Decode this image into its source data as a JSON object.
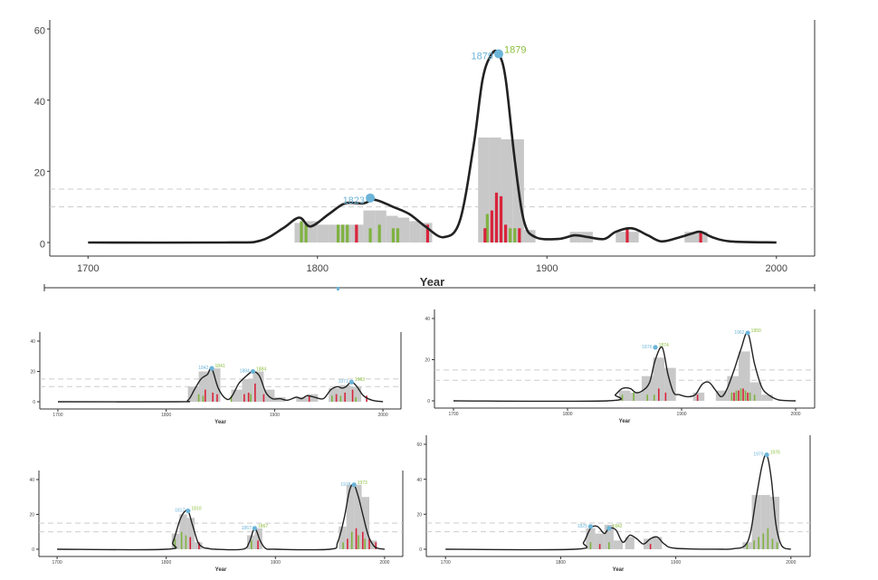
{
  "colors": {
    "curve": "#222222",
    "hist": "#c8c8c8",
    "green": "#7fb241",
    "red": "#d9243b",
    "peak_blue": "#6cb4d8",
    "peak_green": "#8dbf3f",
    "threshold": "#cccccc",
    "axis": "#333333"
  },
  "chart_data": [
    {
      "type": "area",
      "xlabel": "Year",
      "xlim": [
        1700,
        2000
      ],
      "ylim": [
        0,
        60
      ],
      "xticks": [
        "1700",
        "1800",
        "1900",
        "2000"
      ],
      "yticks": [
        "0",
        "20",
        "40",
        "60"
      ],
      "thresholds": [
        10,
        15
      ],
      "grid": false,
      "curve": {
        "x": [
          1700,
          1760,
          1775,
          1785,
          1792,
          1797,
          1805,
          1812,
          1820,
          1825,
          1833,
          1840,
          1847,
          1855,
          1862,
          1868,
          1872,
          1876,
          1879,
          1882,
          1886,
          1890,
          1895,
          1905,
          1912,
          1918,
          1925,
          1930,
          1937,
          1944,
          1950,
          1958,
          1963,
          1967,
          1972,
          1980,
          2000
        ],
        "y": [
          0,
          0,
          0.5,
          4,
          7,
          4.5,
          8,
          11,
          11,
          12,
          10,
          8,
          4.5,
          1.5,
          6,
          27,
          46,
          53,
          53,
          46,
          23,
          6,
          1.5,
          1,
          2,
          1.5,
          1,
          3,
          4,
          2,
          0.3,
          1.5,
          2.5,
          3,
          1.5,
          0.3,
          0
        ]
      },
      "histogram": [
        {
          "x0": 1790,
          "x1": 1795,
          "y": 5.5
        },
        {
          "x0": 1795,
          "x1": 1800,
          "y": 6
        },
        {
          "x0": 1800,
          "x1": 1805,
          "y": 5
        },
        {
          "x0": 1805,
          "x1": 1810,
          "y": 5
        },
        {
          "x0": 1810,
          "x1": 1815,
          "y": 5
        },
        {
          "x0": 1815,
          "x1": 1820,
          "y": 5
        },
        {
          "x0": 1820,
          "x1": 1825,
          "y": 9
        },
        {
          "x0": 1825,
          "x1": 1830,
          "y": 9
        },
        {
          "x0": 1830,
          "x1": 1835,
          "y": 7.5
        },
        {
          "x0": 1835,
          "x1": 1840,
          "y": 7
        },
        {
          "x0": 1840,
          "x1": 1845,
          "y": 6
        },
        {
          "x0": 1845,
          "x1": 1850,
          "y": 5.5
        },
        {
          "x0": 1870,
          "x1": 1875,
          "y": 29.5
        },
        {
          "x0": 1875,
          "x1": 1880,
          "y": 29.5
        },
        {
          "x0": 1880,
          "x1": 1885,
          "y": 29
        },
        {
          "x0": 1885,
          "x1": 1890,
          "y": 29
        },
        {
          "x0": 1890,
          "x1": 1895,
          "y": 3.5
        },
        {
          "x0": 1910,
          "x1": 1915,
          "y": 3
        },
        {
          "x0": 1915,
          "x1": 1920,
          "y": 3
        },
        {
          "x0": 1930,
          "x1": 1935,
          "y": 3
        },
        {
          "x0": 1935,
          "x1": 1940,
          "y": 3
        },
        {
          "x0": 1960,
          "x1": 1965,
          "y": 3
        },
        {
          "x0": 1965,
          "x1": 1970,
          "y": 3
        }
      ],
      "bars_green": [
        {
          "x": 1793,
          "y": 6
        },
        {
          "x": 1795,
          "y": 5
        },
        {
          "x": 1809,
          "y": 5
        },
        {
          "x": 1811,
          "y": 5
        },
        {
          "x": 1813,
          "y": 5
        },
        {
          "x": 1823,
          "y": 4
        },
        {
          "x": 1827,
          "y": 5
        },
        {
          "x": 1833,
          "y": 4
        },
        {
          "x": 1835,
          "y": 4
        },
        {
          "x": 1874,
          "y": 8
        },
        {
          "x": 1884,
          "y": 4
        },
        {
          "x": 1886,
          "y": 4
        }
      ],
      "bars_red": [
        {
          "x": 1817,
          "y": 5
        },
        {
          "x": 1848,
          "y": 5
        },
        {
          "x": 1873,
          "y": 4
        },
        {
          "x": 1876,
          "y": 9
        },
        {
          "x": 1878,
          "y": 14
        },
        {
          "x": 1880,
          "y": 13
        },
        {
          "x": 1882,
          "y": 5
        },
        {
          "x": 1888,
          "y": 4
        },
        {
          "x": 1935,
          "y": 4
        },
        {
          "x": 1967,
          "y": 3
        }
      ],
      "peaks": [
        {
          "x": 1879,
          "y": 53,
          "label_blue": "1879",
          "label_green": "1879"
        },
        {
          "x": 1823,
          "y": 12.5,
          "label_blue": "1823",
          "label_green": ""
        }
      ]
    },
    {
      "type": "area",
      "xlabel": "Year",
      "xlim": [
        1700,
        2000
      ],
      "ylim": [
        0,
        40
      ],
      "xticks": [
        "1700",
        "1800",
        "1900",
        "2000"
      ],
      "yticks": [
        "0",
        "20",
        "40"
      ],
      "thresholds": [
        10,
        15
      ],
      "curve": {
        "x": [
          1700,
          1810,
          1820,
          1826,
          1832,
          1838,
          1842,
          1848,
          1855,
          1860,
          1867,
          1874,
          1880,
          1886,
          1892,
          1898,
          1905,
          1912,
          1920,
          1925,
          1930,
          1937,
          1945,
          1952,
          1958,
          1962,
          1966,
          1971,
          1976,
          1982,
          1990,
          2000
        ],
        "y": [
          0,
          0,
          1,
          8,
          15,
          18,
          22,
          9,
          2,
          3,
          12,
          17,
          20,
          17,
          6,
          2,
          2,
          1,
          3,
          2,
          4,
          3,
          2,
          8,
          10,
          9,
          10,
          13,
          10,
          4,
          1,
          0
        ]
      },
      "histogram": [
        {
          "x0": 1820,
          "x1": 1830,
          "y": 10
        },
        {
          "x0": 1830,
          "x1": 1840,
          "y": 20
        },
        {
          "x0": 1840,
          "x1": 1850,
          "y": 22
        },
        {
          "x0": 1860,
          "x1": 1870,
          "y": 8
        },
        {
          "x0": 1870,
          "x1": 1880,
          "y": 15
        },
        {
          "x0": 1880,
          "x1": 1890,
          "y": 20
        },
        {
          "x0": 1890,
          "x1": 1900,
          "y": 8
        },
        {
          "x0": 1900,
          "x1": 1910,
          "y": 3
        },
        {
          "x0": 1920,
          "x1": 1930,
          "y": 3
        },
        {
          "x0": 1930,
          "x1": 1940,
          "y": 5
        },
        {
          "x0": 1950,
          "x1": 1960,
          "y": 9
        },
        {
          "x0": 1960,
          "x1": 1970,
          "y": 11
        },
        {
          "x0": 1970,
          "x1": 1980,
          "y": 10
        }
      ],
      "bars_green": [
        {
          "x": 1830,
          "y": 5
        },
        {
          "x": 1834,
          "y": 4
        },
        {
          "x": 1860,
          "y": 4
        },
        {
          "x": 1878,
          "y": 5
        },
        {
          "x": 1953,
          "y": 4
        },
        {
          "x": 1961,
          "y": 4
        },
        {
          "x": 1975,
          "y": 3
        }
      ],
      "bars_red": [
        {
          "x": 1836,
          "y": 8
        },
        {
          "x": 1843,
          "y": 6
        },
        {
          "x": 1847,
          "y": 5
        },
        {
          "x": 1872,
          "y": 5
        },
        {
          "x": 1876,
          "y": 6
        },
        {
          "x": 1882,
          "y": 12
        },
        {
          "x": 1890,
          "y": 5
        },
        {
          "x": 1932,
          "y": 4
        },
        {
          "x": 1957,
          "y": 5
        },
        {
          "x": 1965,
          "y": 6
        },
        {
          "x": 1972,
          "y": 8
        },
        {
          "x": 1985,
          "y": 4
        }
      ],
      "peaks": [
        {
          "x": 1842,
          "y": 22,
          "label_blue": "1842",
          "label_green": "1841"
        },
        {
          "x": 1880,
          "y": 20,
          "label_blue": "1884",
          "label_green": "1884"
        },
        {
          "x": 1971,
          "y": 13,
          "label_blue": "1971",
          "label_green": "1963"
        }
      ]
    },
    {
      "type": "area",
      "xlabel": "Year",
      "xlim": [
        1700,
        2000
      ],
      "ylim": [
        0,
        40
      ],
      "xticks": [
        "1700",
        "1800",
        "1900",
        "2000"
      ],
      "yticks": [
        "0",
        "20",
        "40"
      ],
      "thresholds": [
        10,
        15
      ],
      "curve": {
        "x": [
          1700,
          1835,
          1842,
          1848,
          1855,
          1860,
          1866,
          1872,
          1877,
          1883,
          1888,
          1893,
          1898,
          1905,
          1912,
          1918,
          1924,
          1930,
          1935,
          1940,
          1946,
          1952,
          1958,
          1964,
          1970,
          1976,
          1985,
          2000
        ],
        "y": [
          0,
          0,
          3,
          6,
          6,
          4,
          5,
          9,
          20,
          26,
          13,
          4,
          3,
          2,
          3,
          8,
          9,
          5,
          2,
          6,
          15,
          25,
          33,
          18,
          7,
          3,
          0.5,
          0
        ]
      },
      "histogram": [
        {
          "x0": 1845,
          "x1": 1855,
          "y": 5
        },
        {
          "x0": 1855,
          "x1": 1865,
          "y": 4
        },
        {
          "x0": 1865,
          "x1": 1875,
          "y": 12
        },
        {
          "x0": 1875,
          "x1": 1885,
          "y": 21
        },
        {
          "x0": 1885,
          "x1": 1895,
          "y": 16
        },
        {
          "x0": 1910,
          "x1": 1920,
          "y": 4
        },
        {
          "x0": 1930,
          "x1": 1940,
          "y": 5
        },
        {
          "x0": 1940,
          "x1": 1950,
          "y": 12
        },
        {
          "x0": 1950,
          "x1": 1960,
          "y": 24
        },
        {
          "x0": 1960,
          "x1": 1970,
          "y": 9
        },
        {
          "x0": 1970,
          "x1": 1980,
          "y": 3
        }
      ],
      "bars_green": [
        {
          "x": 1848,
          "y": 3
        },
        {
          "x": 1858,
          "y": 4
        },
        {
          "x": 1870,
          "y": 3
        },
        {
          "x": 1876,
          "y": 3
        },
        {
          "x": 1944,
          "y": 4
        },
        {
          "x": 1948,
          "y": 5
        },
        {
          "x": 1952,
          "y": 6
        },
        {
          "x": 1956,
          "y": 5
        },
        {
          "x": 1960,
          "y": 4
        },
        {
          "x": 1964,
          "y": 3
        }
      ],
      "bars_red": [
        {
          "x": 1880,
          "y": 6
        },
        {
          "x": 1886,
          "y": 4
        },
        {
          "x": 1914,
          "y": 3
        },
        {
          "x": 1946,
          "y": 4
        },
        {
          "x": 1950,
          "y": 5
        },
        {
          "x": 1954,
          "y": 6
        },
        {
          "x": 1958,
          "y": 4
        }
      ],
      "peaks": [
        {
          "x": 1877,
          "y": 26,
          "label_blue": "1876",
          "label_green": "1874"
        },
        {
          "x": 1958,
          "y": 33,
          "label_blue": "1962",
          "label_green": "1950"
        }
      ]
    },
    {
      "type": "area",
      "xlabel": "Year",
      "xlim": [
        1700,
        2000
      ],
      "ylim": [
        0,
        40
      ],
      "xticks": [
        "1700",
        "1800",
        "1900",
        "2000"
      ],
      "yticks": [
        "0",
        "20",
        "40"
      ],
      "thresholds": [
        10,
        15
      ],
      "curve": {
        "x": [
          1700,
          1800,
          1806,
          1812,
          1816,
          1820,
          1824,
          1829,
          1834,
          1838,
          1845,
          1870,
          1876,
          1881,
          1886,
          1891,
          1900,
          1950,
          1957,
          1963,
          1968,
          1972,
          1976,
          1980,
          1985,
          1990,
          1994,
          2000
        ],
        "y": [
          0,
          0,
          4,
          16,
          21,
          22,
          14,
          4,
          1,
          0.5,
          0,
          0,
          4,
          12,
          5,
          0.5,
          0,
          0,
          4,
          18,
          34,
          37,
          30,
          20,
          8,
          2,
          0.5,
          0
        ]
      },
      "histogram": [
        {
          "x0": 1805,
          "x1": 1812,
          "y": 9
        },
        {
          "x0": 1812,
          "x1": 1819,
          "y": 20
        },
        {
          "x0": 1819,
          "x1": 1826,
          "y": 18
        },
        {
          "x0": 1826,
          "x1": 1833,
          "y": 4
        },
        {
          "x0": 1874,
          "x1": 1881,
          "y": 8
        },
        {
          "x0": 1881,
          "x1": 1888,
          "y": 12
        },
        {
          "x0": 1958,
          "x1": 1965,
          "y": 13
        },
        {
          "x0": 1965,
          "x1": 1972,
          "y": 37
        },
        {
          "x0": 1972,
          "x1": 1979,
          "y": 37
        },
        {
          "x0": 1979,
          "x1": 1986,
          "y": 30
        },
        {
          "x0": 1986,
          "x1": 1993,
          "y": 5
        }
      ],
      "bars_green": [
        {
          "x": 1808,
          "y": 6
        },
        {
          "x": 1814,
          "y": 10
        },
        {
          "x": 1818,
          "y": 8
        },
        {
          "x": 1878,
          "y": 5
        },
        {
          "x": 1962,
          "y": 4
        },
        {
          "x": 1970,
          "y": 10
        },
        {
          "x": 1976,
          "y": 8
        },
        {
          "x": 1982,
          "y": 6
        }
      ],
      "bars_red": [
        {
          "x": 1822,
          "y": 7
        },
        {
          "x": 1830,
          "y": 4
        },
        {
          "x": 1884,
          "y": 5
        },
        {
          "x": 1966,
          "y": 6
        },
        {
          "x": 1974,
          "y": 12
        },
        {
          "x": 1980,
          "y": 10
        },
        {
          "x": 1986,
          "y": 6
        },
        {
          "x": 1992,
          "y": 4
        }
      ],
      "peaks": [
        {
          "x": 1820,
          "y": 22,
          "label_blue": "1817",
          "label_green": "1810"
        },
        {
          "x": 1881,
          "y": 12,
          "label_blue": "1867",
          "label_green": "1867"
        },
        {
          "x": 1972,
          "y": 37,
          "label_blue": "1978",
          "label_green": "1973"
        }
      ]
    },
    {
      "type": "area",
      "xlabel": "Year",
      "xlim": [
        1700,
        2000
      ],
      "ylim": [
        0,
        60
      ],
      "xticks": [
        "1700",
        "1800",
        "1900",
        "2000"
      ],
      "yticks": [
        "0",
        "20",
        "40",
        "60"
      ],
      "thresholds": [
        10,
        15
      ],
      "curve": {
        "x": [
          1700,
          1812,
          1820,
          1826,
          1832,
          1838,
          1842,
          1848,
          1854,
          1860,
          1866,
          1872,
          1878,
          1884,
          1890,
          1900,
          1940,
          1950,
          1960,
          1965,
          1970,
          1975,
          1979,
          1983,
          1987,
          1992,
          2000
        ],
        "y": [
          0,
          0,
          4,
          12,
          13,
          9,
          12,
          11,
          4,
          8,
          6,
          3,
          6,
          7,
          3,
          0.5,
          0,
          0.3,
          2,
          10,
          30,
          48,
          54,
          40,
          14,
          2,
          0
        ]
      },
      "histogram": [
        {
          "x0": 1822,
          "x1": 1830,
          "y": 12
        },
        {
          "x0": 1830,
          "x1": 1838,
          "y": 9
        },
        {
          "x0": 1838,
          "x1": 1846,
          "y": 14
        },
        {
          "x0": 1846,
          "x1": 1854,
          "y": 5
        },
        {
          "x0": 1856,
          "x1": 1864,
          "y": 7
        },
        {
          "x0": 1872,
          "x1": 1880,
          "y": 6
        },
        {
          "x0": 1880,
          "x1": 1888,
          "y": 7
        },
        {
          "x0": 1958,
          "x1": 1966,
          "y": 4
        },
        {
          "x0": 1966,
          "x1": 1974,
          "y": 31
        },
        {
          "x0": 1974,
          "x1": 1982,
          "y": 31
        },
        {
          "x0": 1982,
          "x1": 1990,
          "y": 30
        }
      ],
      "bars_green": [
        {
          "x": 1826,
          "y": 4
        },
        {
          "x": 1842,
          "y": 4
        },
        {
          "x": 1962,
          "y": 3
        },
        {
          "x": 1968,
          "y": 5
        },
        {
          "x": 1972,
          "y": 7
        },
        {
          "x": 1976,
          "y": 9
        },
        {
          "x": 1980,
          "y": 12
        },
        {
          "x": 1984,
          "y": 6
        },
        {
          "x": 1988,
          "y": 4
        }
      ],
      "bars_red": [
        {
          "x": 1834,
          "y": 3
        },
        {
          "x": 1878,
          "y": 3
        }
      ],
      "peaks": [
        {
          "x": 1826,
          "y": 13,
          "label_blue": "1825",
          "label_green": ""
        },
        {
          "x": 1842,
          "y": 12,
          "label_blue": "",
          "label_green": "1842"
        },
        {
          "x": 1979,
          "y": 54,
          "label_blue": "1979",
          "label_green": "1976"
        }
      ]
    }
  ]
}
